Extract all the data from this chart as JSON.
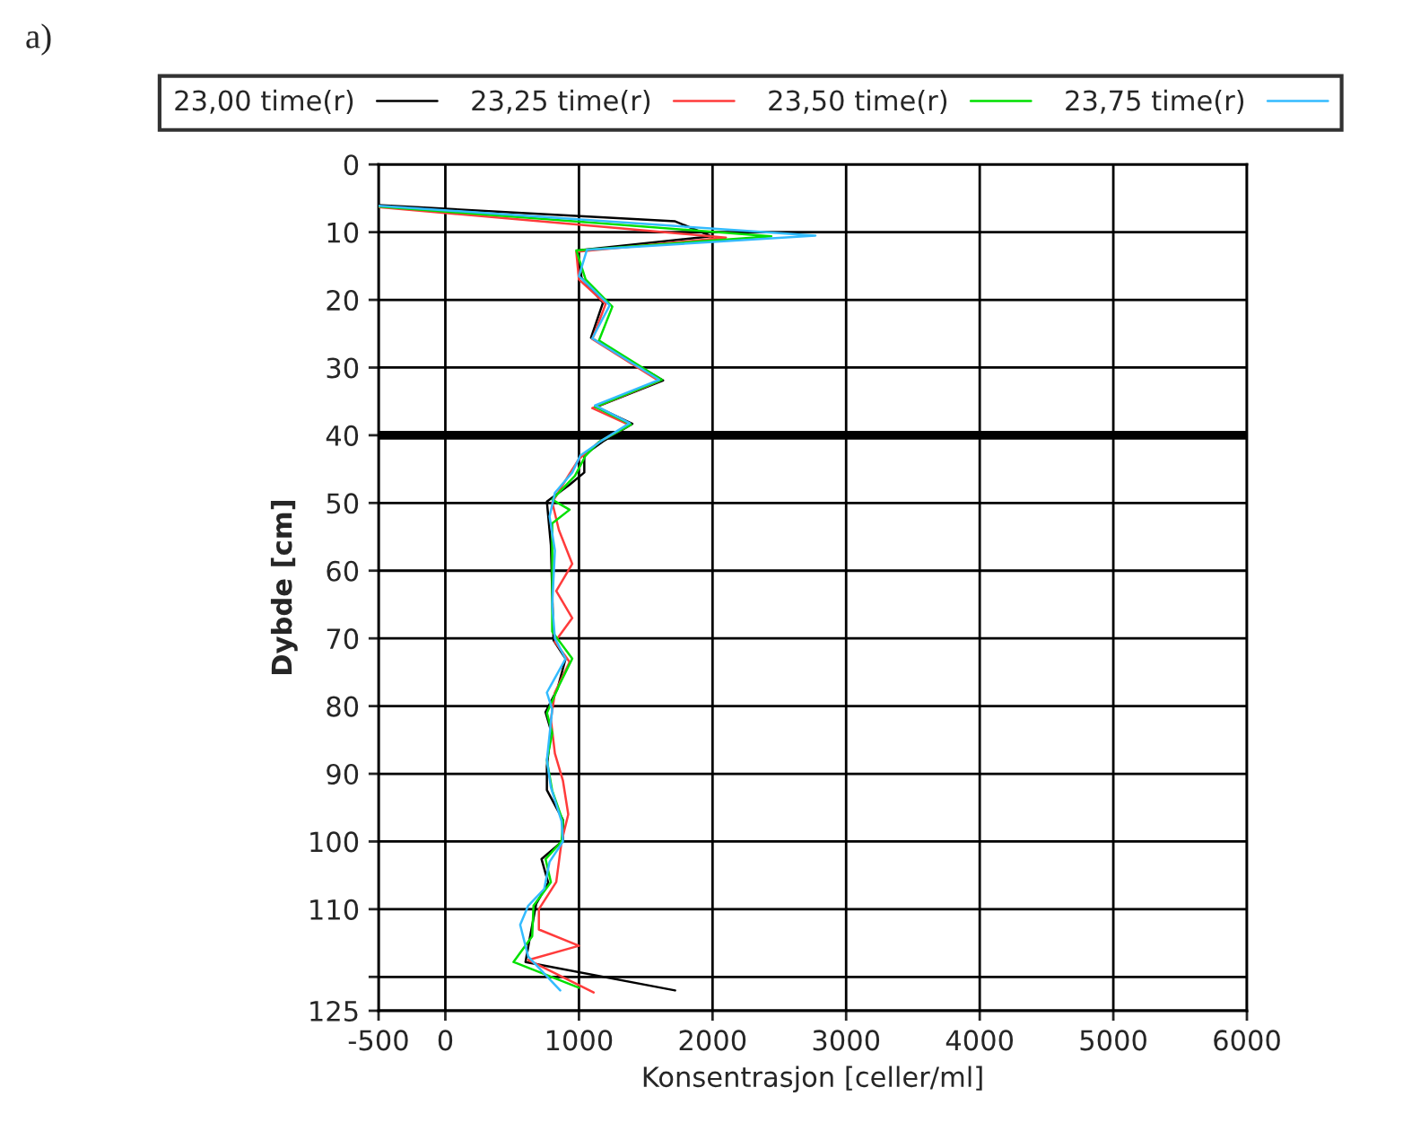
{
  "chart_data": {
    "type": "line",
    "annotations": [
      "a)"
    ],
    "xlabel": "Konsentrasjon [celler/ml]",
    "ylabel": "Dybde [cm]",
    "xlim": [
      -500,
      6000
    ],
    "xticks": [
      -500,
      0,
      1000,
      2000,
      3000,
      4000,
      5000,
      6000
    ],
    "ylim": [
      125,
      0
    ],
    "yticks": [
      0,
      10,
      20,
      30,
      40,
      50,
      60,
      70,
      80,
      90,
      100,
      110,
      {
        "value": 120,
        "label": null
      },
      125
    ],
    "grid": true,
    "legend": "top",
    "marker": "none",
    "line_style": "solid",
    "ref_lines": [
      {
        "axis": "y",
        "value": 40,
        "color": "#000000"
      }
    ],
    "series": [
      {
        "name": "23,00 time(r)",
        "color": "#000000",
        "x": [
          -500,
          1720,
          1990,
          990,
          1020,
          1180,
          1090,
          1630,
          1130,
          1400,
          1180,
          1040,
          1040,
          930,
          760,
          790,
          810,
          900,
          840,
          750,
          790,
          760,
          760,
          880,
          880,
          720,
          770,
          680,
          630,
          600,
          1720
        ],
        "values": [
          6.0,
          8.4,
          10.6,
          12.7,
          16.8,
          20.4,
          25.6,
          31.9,
          35.8,
          38.3,
          40.9,
          42.9,
          45.5,
          47.3,
          49.8,
          56.2,
          70.3,
          73,
          77.4,
          80.9,
          83.6,
          88.9,
          92.4,
          96.8,
          99.9,
          102.6,
          106.1,
          109.2,
          114.5,
          117.8,
          122
        ]
      },
      {
        "name": "23,25 time(r)",
        "color": "#ff3b3b",
        "x": [
          -500,
          2100,
          980,
          1000,
          1200,
          1100,
          1600,
          1100,
          1380,
          1150,
          1000,
          920,
          800,
          850,
          950,
          830,
          950,
          820,
          930,
          820,
          790,
          820,
          880,
          920,
          870,
          850,
          830,
          700,
          700,
          1000,
          620,
          1110
        ],
        "values": [
          6.3,
          10.8,
          12.9,
          17,
          20.6,
          25.8,
          32,
          36,
          38.5,
          41,
          43.5,
          46,
          49.9,
          54,
          59,
          63,
          67,
          70.5,
          73.5,
          78,
          82,
          87,
          91,
          96,
          100,
          103,
          106,
          110,
          113,
          115.4,
          117.5,
          122.3
        ]
      },
      {
        "name": "23,50 time(r)",
        "color": "#00e000",
        "x": [
          -500,
          2440,
          980,
          1050,
          1250,
          1150,
          1620,
          1120,
          1390,
          1150,
          1050,
          970,
          800,
          930,
          800,
          800,
          800,
          950,
          850,
          760,
          800,
          760,
          800,
          880,
          870,
          750,
          790,
          660,
          650,
          510,
          1000
        ],
        "values": [
          6.2,
          10.6,
          12.7,
          17,
          21,
          26,
          31.8,
          35.8,
          38.4,
          41,
          43,
          46,
          49.5,
          51,
          53,
          63,
          69,
          73,
          77,
          81,
          84,
          88,
          92.5,
          97,
          100,
          102.6,
          106,
          109.5,
          114,
          117.8,
          121.6
        ]
      },
      {
        "name": "23,75 time(r)",
        "color": "#33bbff",
        "x": [
          -500,
          2770,
          1060,
          1000,
          1230,
          1100,
          1600,
          1120,
          1380,
          1170,
          1010,
          950,
          820,
          780,
          820,
          800,
          820,
          900,
          760,
          800,
          760,
          790,
          870,
          880,
          780,
          740,
          620,
          560,
          620,
          860
        ],
        "values": [
          6.1,
          10.5,
          12.6,
          16.5,
          20.8,
          25.7,
          31.8,
          35.6,
          38.2,
          40.8,
          43,
          45.5,
          48.5,
          52,
          57,
          65,
          70,
          73,
          78,
          80.5,
          88,
          92,
          97,
          100,
          103,
          107,
          109.5,
          112.3,
          117,
          122
        ]
      }
    ]
  }
}
